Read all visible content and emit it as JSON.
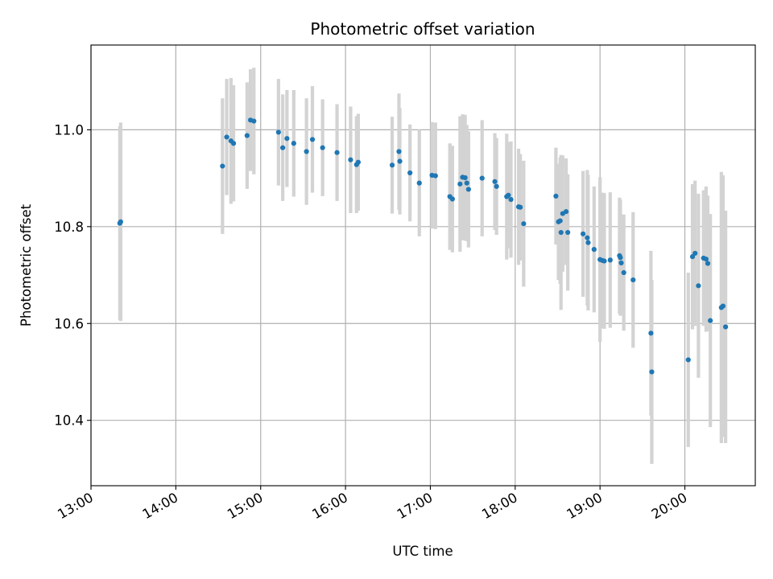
{
  "chart_data": {
    "type": "scatter",
    "title": "Photometric offset variation",
    "xlabel": "UTC time",
    "ylabel": "Photometric offset",
    "x_unit": "hours UTC",
    "xlim": [
      13.0,
      20.83
    ],
    "ylim": [
      10.265,
      11.175
    ],
    "x_ticks": [
      13,
      14,
      15,
      16,
      17,
      18,
      19,
      20
    ],
    "x_tick_labels": [
      "13:00",
      "14:00",
      "15:00",
      "16:00",
      "17:00",
      "18:00",
      "19:00",
      "20:00"
    ],
    "y_ticks": [
      10.4,
      10.6,
      10.8,
      11.0
    ],
    "y_tick_labels": [
      "10.4",
      "10.6",
      "10.8",
      "11.0"
    ],
    "grid": true,
    "colors": {
      "points": "#1f77b4",
      "errorbars": "#d3d3d3"
    },
    "series": [
      {
        "x": [
          13.34,
          13.35,
          14.55,
          14.6,
          14.65,
          14.68,
          14.84,
          14.88,
          14.92,
          15.21,
          15.26,
          15.31,
          15.39,
          15.54,
          15.61,
          15.73,
          15.9,
          16.06,
          16.13,
          16.15,
          16.55,
          16.63,
          16.64,
          16.76,
          16.87,
          17.02,
          17.06,
          17.23,
          17.26,
          17.35,
          17.38,
          17.41,
          17.43,
          17.45,
          17.61,
          17.76,
          17.78,
          17.9,
          17.92,
          17.95,
          18.04,
          18.06,
          18.1,
          18.48,
          18.51,
          18.53,
          18.54,
          18.56,
          18.6,
          18.62,
          18.8,
          18.85,
          18.86,
          18.93,
          19.0,
          19.03,
          19.05,
          19.12,
          19.23,
          19.24,
          19.25,
          19.28,
          19.39,
          19.6,
          19.61,
          20.04,
          20.09,
          20.12,
          20.16,
          20.22,
          20.25,
          20.27,
          20.3,
          20.43,
          20.45,
          20.48
        ],
        "y": [
          10.807,
          10.81,
          10.925,
          10.985,
          10.977,
          10.972,
          10.988,
          11.02,
          11.018,
          10.995,
          10.963,
          10.982,
          10.972,
          10.955,
          10.98,
          10.963,
          10.953,
          10.938,
          10.928,
          10.933,
          10.927,
          10.955,
          10.935,
          10.911,
          10.89,
          10.906,
          10.905,
          10.862,
          10.857,
          10.888,
          10.902,
          10.901,
          10.89,
          10.877,
          10.9,
          10.893,
          10.883,
          10.862,
          10.865,
          10.856,
          10.841,
          10.84,
          10.806,
          10.863,
          10.81,
          10.812,
          10.788,
          10.827,
          10.831,
          10.788,
          10.785,
          10.777,
          10.767,
          10.753,
          10.732,
          10.73,
          10.729,
          10.731,
          10.74,
          10.736,
          10.725,
          10.705,
          10.69,
          10.58,
          10.5,
          10.525,
          10.738,
          10.745,
          10.678,
          10.735,
          10.733,
          10.724,
          10.606,
          10.633,
          10.636,
          10.593
        ],
        "yerr": [
          0.2,
          0.205,
          0.14,
          0.12,
          0.13,
          0.12,
          0.11,
          0.105,
          0.11,
          0.11,
          0.11,
          0.1,
          0.11,
          0.11,
          0.11,
          0.1,
          0.1,
          0.11,
          0.1,
          0.1,
          0.1,
          0.12,
          0.11,
          0.1,
          0.11,
          0.11,
          0.11,
          0.11,
          0.11,
          0.14,
          0.13,
          0.13,
          0.12,
          0.12,
          0.12,
          0.1,
          0.1,
          0.13,
          0.11,
          0.12,
          0.12,
          0.11,
          0.13,
          0.1,
          0.12,
          0.13,
          0.16,
          0.12,
          0.11,
          0.12,
          0.13,
          0.14,
          0.14,
          0.13,
          0.17,
          0.14,
          0.14,
          0.14,
          0.12,
          0.12,
          0.1,
          0.12,
          0.14,
          0.17,
          0.19,
          0.18,
          0.15,
          0.15,
          0.19,
          0.14,
          0.15,
          0.14,
          0.22,
          0.28,
          0.27,
          0.24
        ]
      }
    ]
  }
}
